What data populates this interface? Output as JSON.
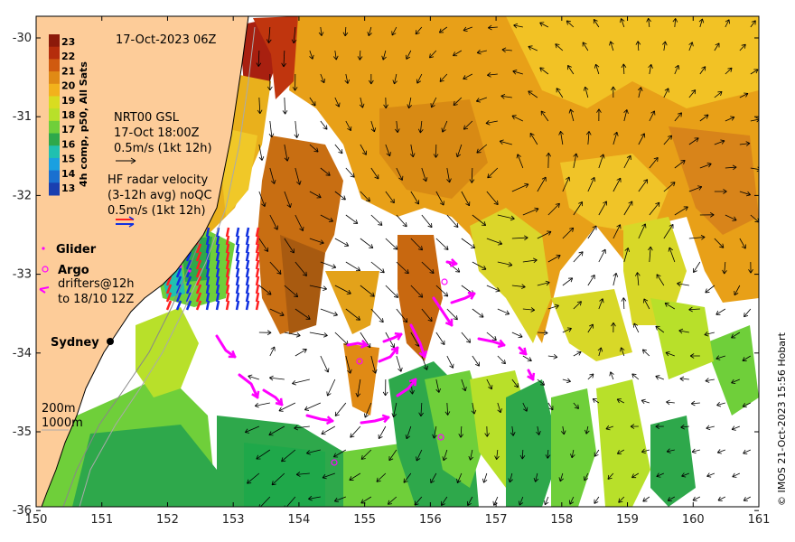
{
  "title": "17-Oct-2023 06Z",
  "colorbar": {
    "label": "4h comp, p50, All Sats",
    "ticks": [
      "23",
      "22",
      "21",
      "20",
      "19",
      "18",
      "17",
      "16",
      "15",
      "14",
      "13"
    ],
    "colors": [
      "#8c1a0a",
      "#b52d0c",
      "#d05a10",
      "#e08a15",
      "#f2b21c",
      "#d9dc20",
      "#b8e02a",
      "#6fcf3a",
      "#2ea84b",
      "#20c0b0",
      "#1aa0e0",
      "#1a70d0",
      "#1a3fb0"
    ]
  },
  "nrt_legend": {
    "line1": "NRT00 GSL",
    "line2": "17-Oct 18:00Z",
    "line3": "0.5m/s (1kt 12h)"
  },
  "hf_legend": {
    "line1": "HF radar velocity",
    "line2": "(3-12h avg) noQC",
    "line3": "0.5m/s (1kt 12h)"
  },
  "glider_label": "Glider",
  "argo_label": "Argo",
  "drifters": {
    "line1": "drifters@12h",
    "line2": "to 18/10 12Z"
  },
  "city": "Sydney",
  "bathy": {
    "line1": "200m",
    "line2": "1000m"
  },
  "x_ticks": [
    "150",
    "151",
    "152",
    "153",
    "154",
    "155",
    "156",
    "157",
    "158",
    "159",
    "160",
    "161"
  ],
  "y_ticks": [
    "-30",
    "-31",
    "-32",
    "-33",
    "-34",
    "-35",
    "-36"
  ],
  "credit": "© IMOS 21-Oct-2023 15:56 Hobart",
  "colors": {
    "land": "#fdcc99",
    "glider": "#ff00ff",
    "argo": "#ff00ff",
    "drifter": "#ff00ff",
    "hf_red": "#ff2020",
    "hf_blue": "#1030e0"
  }
}
